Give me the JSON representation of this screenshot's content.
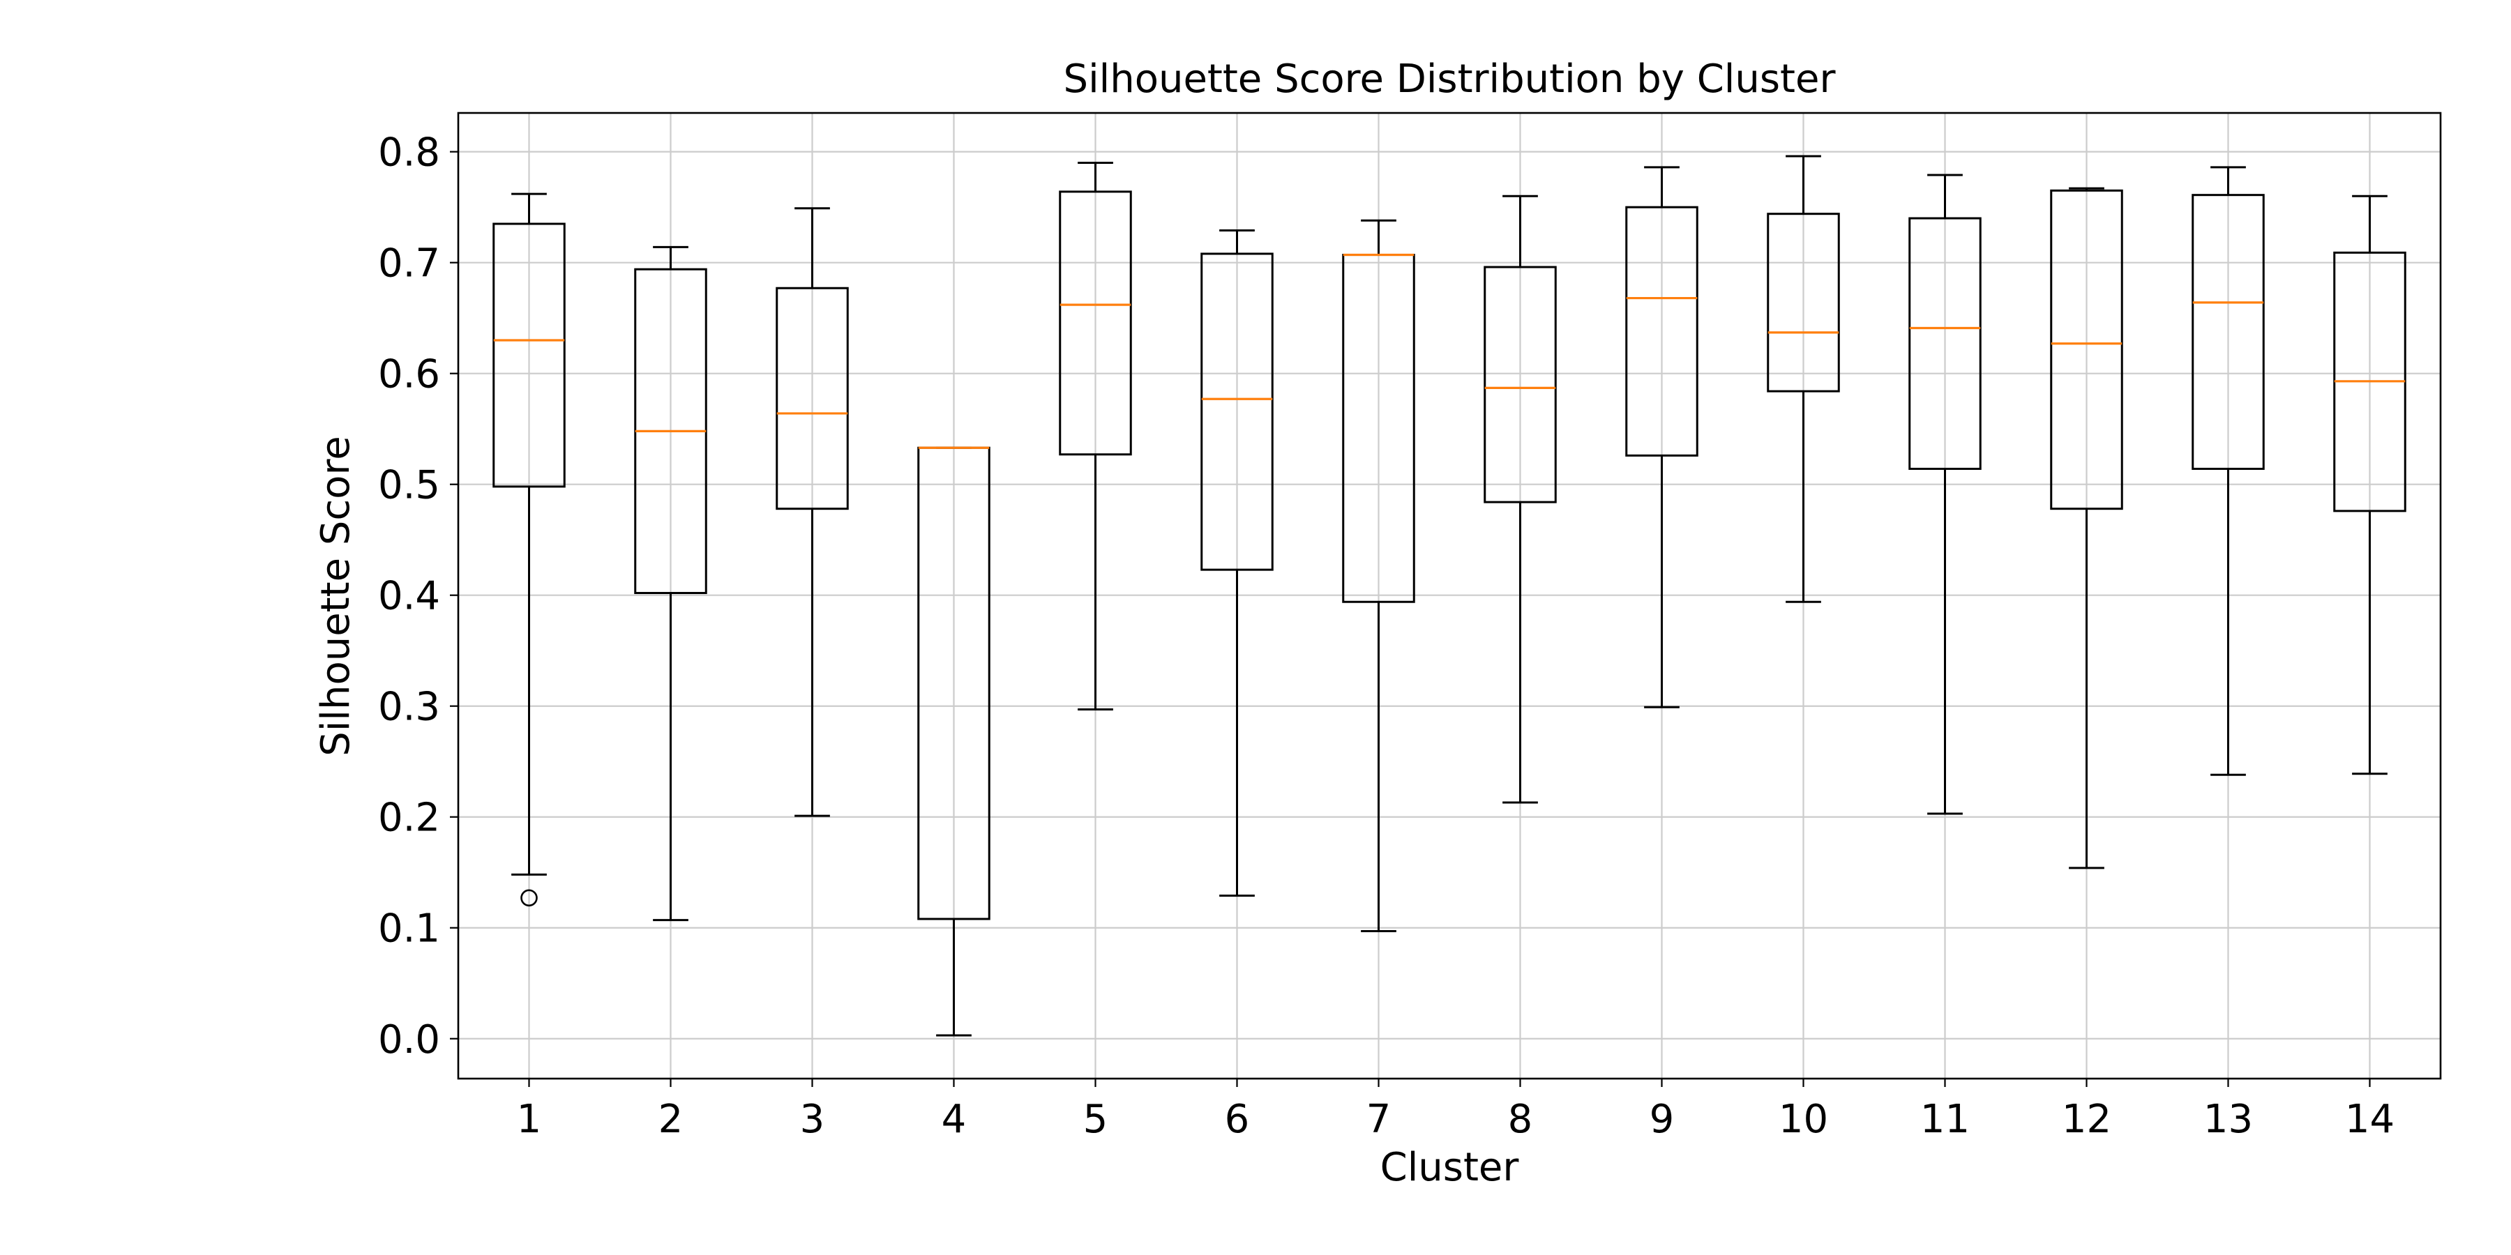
{
  "chart_data": {
    "type": "boxplot",
    "title": "Silhouette Score Distribution by Cluster",
    "xlabel": "Cluster",
    "ylabel": "Silhouette Score",
    "categories": [
      "1",
      "2",
      "3",
      "4",
      "5",
      "6",
      "7",
      "8",
      "9",
      "10",
      "11",
      "12",
      "13",
      "14"
    ],
    "boxes": [
      {
        "whisker_low": 0.148,
        "q1": 0.498,
        "median": 0.63,
        "q3": 0.735,
        "whisker_high": 0.762,
        "outliers": [
          0.127
        ]
      },
      {
        "whisker_low": 0.107,
        "q1": 0.402,
        "median": 0.548,
        "q3": 0.694,
        "whisker_high": 0.714,
        "outliers": []
      },
      {
        "whisker_low": 0.201,
        "q1": 0.478,
        "median": 0.564,
        "q3": 0.677,
        "whisker_high": 0.749,
        "outliers": []
      },
      {
        "whisker_low": 0.003,
        "q1": 0.108,
        "median": 0.533,
        "q3": 0.533,
        "whisker_high": 0.533,
        "outliers": []
      },
      {
        "whisker_low": 0.297,
        "q1": 0.527,
        "median": 0.662,
        "q3": 0.764,
        "whisker_high": 0.79,
        "outliers": []
      },
      {
        "whisker_low": 0.129,
        "q1": 0.423,
        "median": 0.577,
        "q3": 0.708,
        "whisker_high": 0.729,
        "outliers": []
      },
      {
        "whisker_low": 0.097,
        "q1": 0.394,
        "median": 0.707,
        "q3": 0.707,
        "whisker_high": 0.738,
        "outliers": []
      },
      {
        "whisker_low": 0.213,
        "q1": 0.484,
        "median": 0.587,
        "q3": 0.696,
        "whisker_high": 0.76,
        "outliers": []
      },
      {
        "whisker_low": 0.299,
        "q1": 0.526,
        "median": 0.668,
        "q3": 0.75,
        "whisker_high": 0.786,
        "outliers": []
      },
      {
        "whisker_low": 0.394,
        "q1": 0.584,
        "median": 0.637,
        "q3": 0.744,
        "whisker_high": 0.796,
        "outliers": []
      },
      {
        "whisker_low": 0.203,
        "q1": 0.514,
        "median": 0.641,
        "q3": 0.74,
        "whisker_high": 0.779,
        "outliers": []
      },
      {
        "whisker_low": 0.154,
        "q1": 0.478,
        "median": 0.627,
        "q3": 0.765,
        "whisker_high": 0.767,
        "outliers": []
      },
      {
        "whisker_low": 0.238,
        "q1": 0.514,
        "median": 0.664,
        "q3": 0.761,
        "whisker_high": 0.786,
        "outliers": []
      },
      {
        "whisker_low": 0.239,
        "q1": 0.476,
        "median": 0.593,
        "q3": 0.709,
        "whisker_high": 0.76,
        "outliers": []
      }
    ],
    "ylim": [
      -0.036,
      0.835
    ],
    "yticks": [
      0.0,
      0.1,
      0.2,
      0.3,
      0.4,
      0.5,
      0.6,
      0.7,
      0.8
    ],
    "ytick_labels": [
      "0.0",
      "0.1",
      "0.2",
      "0.3",
      "0.4",
      "0.5",
      "0.6",
      "0.7",
      "0.8"
    ],
    "grid": true,
    "colors": {
      "box": "#000000",
      "median": "#ff7f0e",
      "grid": "#cccccc"
    }
  }
}
